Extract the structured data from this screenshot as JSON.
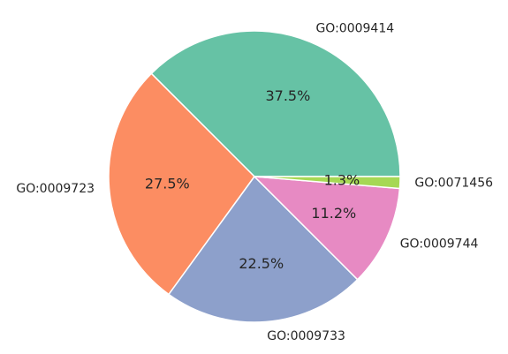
{
  "chart_data": {
    "type": "pie",
    "categories": [
      "GO:0009414",
      "GO:0009723",
      "GO:0009733",
      "GO:0009744",
      "GO:0071456"
    ],
    "values": [
      37.5,
      27.5,
      22.5,
      11.2,
      1.3
    ],
    "value_labels": [
      "37.5%",
      "27.5%",
      "22.5%",
      "11.2%",
      "1.3%"
    ],
    "colors": [
      "#66c2a5",
      "#fc8d62",
      "#8da0cb",
      "#e78ac3",
      "#a6d854"
    ],
    "start_angle_deg": 0,
    "direction": "counterclockwise",
    "legend": "none"
  }
}
